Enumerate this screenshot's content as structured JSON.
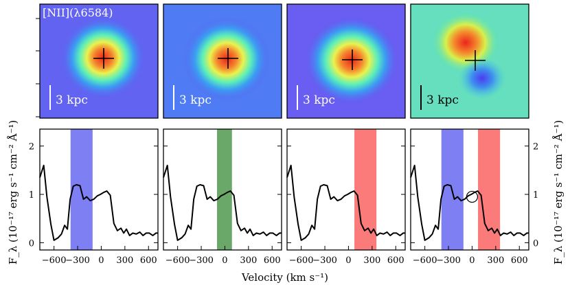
{
  "figure": {
    "map_label": "[NII](λ6584)",
    "scale_bar_label": "3 kpc",
    "xlabel": "Velocity (km s⁻¹)",
    "ylabel_left": "F_λ (10⁻¹⁷ erg s⁻¹ cm⁻² Å⁻¹)",
    "ylabel_right": "F_λ (10⁻¹⁷ erg s⁻¹ cm⁻² Å⁻¹)"
  },
  "colors": {
    "blue_band": "#7f7ff4",
    "green_band": "#6aa86a",
    "red_band": "#fb7b7b",
    "spectrum_line": "#000000"
  },
  "maps": [
    {
      "panel": 1,
      "kind": "flux",
      "peak_color": "red",
      "background": "blue-purple"
    },
    {
      "panel": 2,
      "kind": "flux",
      "peak_color": "red",
      "background": "blue"
    },
    {
      "panel": 3,
      "kind": "flux",
      "peak_color": "red",
      "background": "blue-purple"
    },
    {
      "panel": 4,
      "kind": "difference",
      "peak_color": "red",
      "trough_color": "blue",
      "background": "cyan-green"
    }
  ],
  "chart_data": {
    "type": "line",
    "xlabel": "Velocity (km s⁻¹)",
    "ylabel": "F_λ (10⁻¹⁷ erg s⁻¹ cm⁻² Å⁻¹)",
    "xlim": [
      -780,
      720
    ],
    "ylim": [
      -0.15,
      2.35
    ],
    "xticks": [
      -600,
      -300,
      0,
      300,
      600
    ],
    "xtick_labels": [
      "−600",
      "−300",
      "0",
      "300",
      "600"
    ],
    "yticks": [
      0,
      1,
      2
    ],
    "ytick_labels": [
      "0",
      "1",
      "2"
    ],
    "spectrum": {
      "x": [
        -780,
        -730,
        -690,
        -640,
        -600,
        -550,
        -505,
        -465,
        -430,
        -395,
        -355,
        -315,
        -270,
        -225,
        -185,
        -140,
        -95,
        -50,
        -10,
        30,
        70,
        115,
        160,
        205,
        250,
        285,
        320,
        360,
        400,
        445,
        490,
        530,
        570,
        610,
        655,
        695,
        720
      ],
      "y": [
        1.35,
        1.6,
        0.95,
        0.38,
        0.05,
        0.1,
        0.18,
        0.36,
        0.28,
        0.9,
        1.17,
        1.2,
        1.18,
        0.9,
        0.95,
        0.87,
        0.9,
        0.97,
        1.0,
        1.04,
        1.07,
        0.98,
        0.4,
        0.25,
        0.3,
        0.2,
        0.28,
        0.15,
        0.2,
        0.18,
        0.22,
        0.15,
        0.2,
        0.2,
        0.15,
        0.2,
        0.2
      ]
    },
    "panels": [
      {
        "bands": [
          {
            "color": "blue",
            "x": [
              -390,
              -110
            ]
          }
        ]
      },
      {
        "bands": [
          {
            "color": "green",
            "x": [
              -100,
              90
            ]
          }
        ]
      },
      {
        "bands": [
          {
            "color": "red",
            "x": [
              75,
              355
            ]
          }
        ]
      },
      {
        "bands": [
          {
            "color": "blue",
            "x": [
              -390,
              -110
            ]
          },
          {
            "color": "red",
            "x": [
              75,
              355
            ]
          }
        ],
        "circle_marker_x": 0,
        "circle_marker_y": 0.95
      }
    ]
  }
}
